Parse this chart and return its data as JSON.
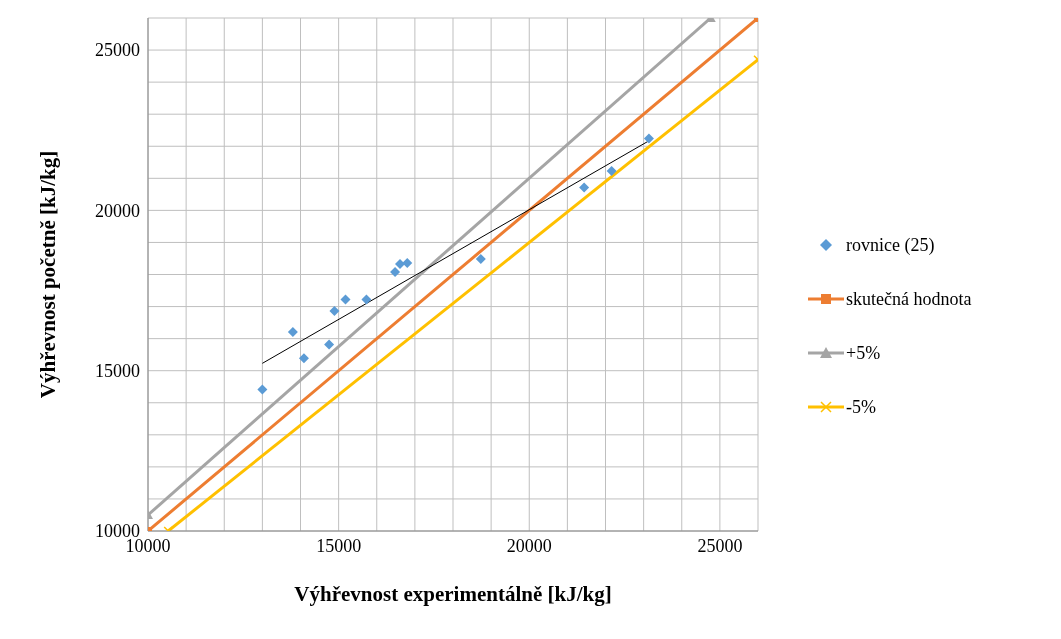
{
  "chart_data": {
    "type": "scatter",
    "xlabel": "Výhřevnost experimentálně [kJ/kg]",
    "ylabel": "Výhřevnost početně [kJ/kg]",
    "xlim": [
      10000,
      26000
    ],
    "ylim": [
      10000,
      26000
    ],
    "xticks": [
      10000,
      {
        "value": 11000,
        "label": null
      },
      {
        "value": 12000,
        "label": null
      },
      {
        "value": 13000,
        "label": null
      },
      {
        "value": 14000,
        "label": null
      },
      15000,
      {
        "value": 16000,
        "label": null
      },
      {
        "value": 17000,
        "label": null
      },
      {
        "value": 18000,
        "label": null
      },
      {
        "value": 19000,
        "label": null
      },
      20000,
      {
        "value": 21000,
        "label": null
      },
      {
        "value": 22000,
        "label": null
      },
      {
        "value": 23000,
        "label": null
      },
      {
        "value": 24000,
        "label": null
      },
      25000,
      {
        "value": 26000,
        "label": null
      }
    ],
    "yticks": [
      10000,
      {
        "value": 11000,
        "label": null
      },
      {
        "value": 12000,
        "label": null
      },
      {
        "value": 13000,
        "label": null
      },
      {
        "value": 14000,
        "label": null
      },
      15000,
      {
        "value": 16000,
        "label": null
      },
      {
        "value": 17000,
        "label": null
      },
      {
        "value": 18000,
        "label": null
      },
      {
        "value": 19000,
        "label": null
      },
      20000,
      {
        "value": 21000,
        "label": null
      },
      {
        "value": 22000,
        "label": null
      },
      {
        "value": 23000,
        "label": null
      },
      {
        "value": 24000,
        "label": null
      },
      25000,
      {
        "value": 26000,
        "label": null
      }
    ],
    "grid": true,
    "legend": "right",
    "series": [
      {
        "name": "rovnice (25)",
        "marker": "diamond",
        "color": "#5b9bd5",
        "x": [
          13000,
          13800,
          14090,
          14750,
          14890,
          15180,
          15730,
          16480,
          16610,
          16800,
          18730,
          21440,
          22160,
          23140
        ],
        "values": [
          14410,
          16210,
          15390,
          15820,
          16860,
          17220,
          17220,
          18080,
          18330,
          18360,
          18480,
          20710,
          21230,
          22240
        ]
      },
      {
        "name": "skutečná hodnota",
        "type": "line",
        "marker": "square",
        "color": "#ed7d31",
        "x": [
          10000,
          26000
        ],
        "values": [
          10000,
          26000
        ]
      },
      {
        "name": "+5%",
        "type": "line",
        "marker": "triangle",
        "color": "#a5a5a5",
        "x": [
          10000,
          24760
        ],
        "values": [
          10500,
          26000
        ]
      },
      {
        "name": "-5%",
        "type": "line",
        "marker": "cross",
        "color": "#ffc000",
        "x": [
          10530,
          26000
        ],
        "values": [
          10000,
          24700
        ]
      },
      {
        "type": "line",
        "marker": "none",
        "color": "#000000",
        "x": [
          13000,
          23140
        ],
        "values": [
          15230,
          22170
        ]
      }
    ]
  }
}
